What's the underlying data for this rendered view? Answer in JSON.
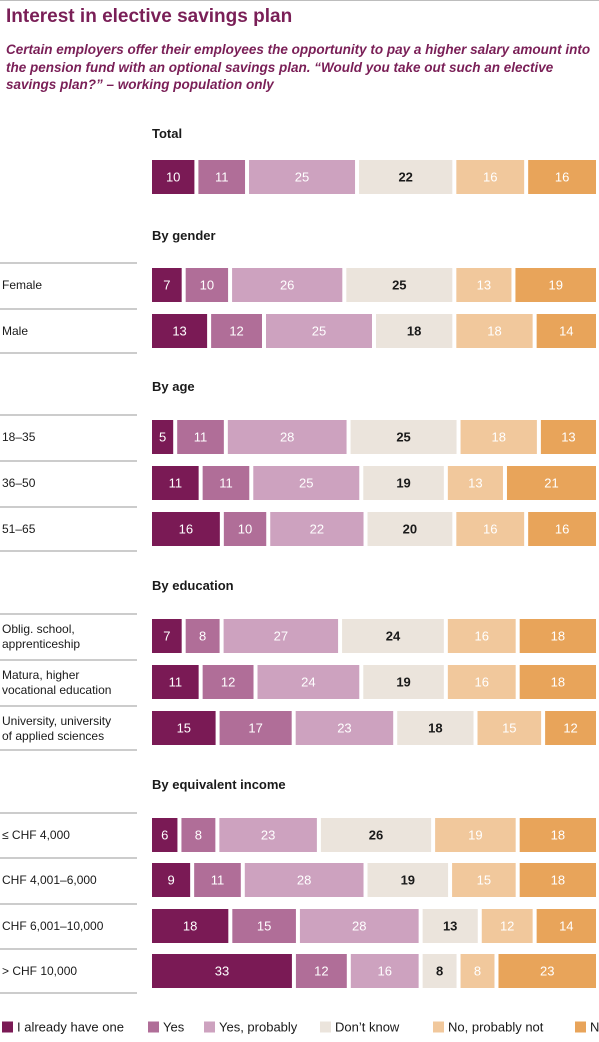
{
  "header": {
    "title": "Interest in elective savings plan",
    "subtitle": "Certain employers offer their employees the opportunity to pay a higher salary amount into the pension fund with an optional savings plan. “Would you take out such an elective savings plan?” – working population only"
  },
  "chart_data": {
    "type": "bar",
    "orientation": "horizontal",
    "stacked": true,
    "total_per_row": 100,
    "legend_position": "bottom",
    "grid": false,
    "series": [
      {
        "name": "I already have one",
        "color": "#7a1a55",
        "label_color": "#ffffff"
      },
      {
        "name": "Yes",
        "color": "#b06e98",
        "label_color": "#ffffff"
      },
      {
        "name": "Yes, probably",
        "color": "#cda2bf",
        "label_color": "#ffffff"
      },
      {
        "name": "Don’t know",
        "color": "#ebe4dc",
        "label_color": "#1a1a1a"
      },
      {
        "name": "No, probably not",
        "color": "#f1c89c",
        "label_color": "#ffffff"
      },
      {
        "name": "No",
        "color": "#e8a45a",
        "label_color": "#ffffff"
      }
    ],
    "groups": [
      {
        "title": "Total",
        "rows": [
          {
            "label": [],
            "values": [
              10,
              11,
              25,
              22,
              16,
              16
            ]
          }
        ]
      },
      {
        "title": "By gender",
        "rows": [
          {
            "label": [
              "Female"
            ],
            "values": [
              7,
              10,
              26,
              25,
              13,
              19
            ]
          },
          {
            "label": [
              "Male"
            ],
            "values": [
              13,
              12,
              25,
              18,
              18,
              14
            ]
          }
        ]
      },
      {
        "title": "By age",
        "rows": [
          {
            "label": [
              "18–35"
            ],
            "values": [
              5,
              11,
              28,
              25,
              18,
              13
            ]
          },
          {
            "label": [
              "36–50"
            ],
            "values": [
              11,
              11,
              25,
              19,
              13,
              21
            ]
          },
          {
            "label": [
              "51–65"
            ],
            "values": [
              16,
              10,
              22,
              20,
              16,
              16
            ]
          }
        ]
      },
      {
        "title": "By education",
        "rows": [
          {
            "label": [
              "Oblig. school,",
              "apprenticeship"
            ],
            "values": [
              7,
              8,
              27,
              24,
              16,
              18
            ]
          },
          {
            "label": [
              "Matura, higher",
              "vocational education"
            ],
            "values": [
              11,
              12,
              24,
              19,
              16,
              18
            ]
          },
          {
            "label": [
              "University, university",
              "of applied sciences"
            ],
            "values": [
              15,
              17,
              23,
              18,
              15,
              12
            ]
          }
        ]
      },
      {
        "title": "By equivalent income",
        "rows": [
          {
            "label": [
              "≤ CHF 4,000"
            ],
            "values": [
              6,
              8,
              23,
              26,
              19,
              18
            ]
          },
          {
            "label": [
              "CHF 4,001–6,000"
            ],
            "values": [
              9,
              11,
              28,
              19,
              15,
              18
            ]
          },
          {
            "label": [
              "CHF 6,001–10,000"
            ],
            "values": [
              18,
              15,
              28,
              13,
              12,
              14
            ]
          },
          {
            "label": [
              "> CHF 10,000"
            ],
            "values": [
              33,
              12,
              16,
              8,
              8,
              23
            ]
          }
        ]
      }
    ]
  }
}
